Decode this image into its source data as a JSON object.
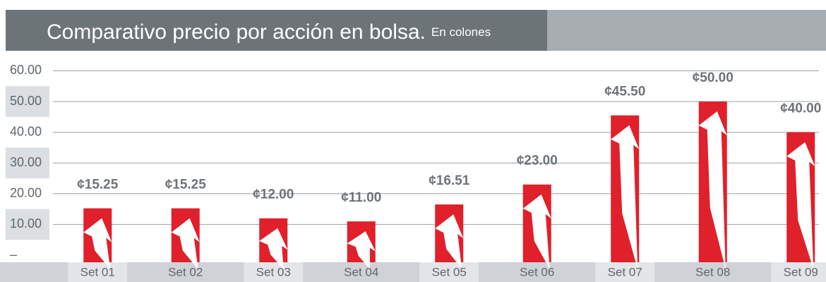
{
  "chart_data": {
    "type": "bar",
    "title": "Comparativo precio por acción en bolsa.",
    "subtitle": "En colones",
    "categories": [
      "Set 01",
      "Set 02",
      "Set 03",
      "Set 04",
      "Set 05",
      "Set 06",
      "Set 07",
      "Set 08",
      "Set 09"
    ],
    "values": [
      15.25,
      15.25,
      12,
      11,
      16.51,
      23,
      45.5,
      50,
      40
    ],
    "value_labels": [
      "¢15.25",
      "¢15.25",
      "¢12.00",
      "¢11.00",
      "¢16.51",
      "¢23.00",
      "¢45.50",
      "¢50.00",
      "¢40.00"
    ],
    "color": "#e0202a",
    "ylim": [
      0,
      60
    ],
    "yticks": [
      {
        "value": 0,
        "label": "–"
      },
      {
        "value": 10,
        "label": "10.00"
      },
      {
        "value": 20,
        "label": "20.00"
      },
      {
        "value": 30,
        "label": "30.00"
      },
      {
        "value": 40,
        "label": "40.00"
      },
      {
        "value": 50,
        "label": "50.00"
      },
      {
        "value": 60,
        "label": "60.00"
      }
    ],
    "grid": true
  }
}
